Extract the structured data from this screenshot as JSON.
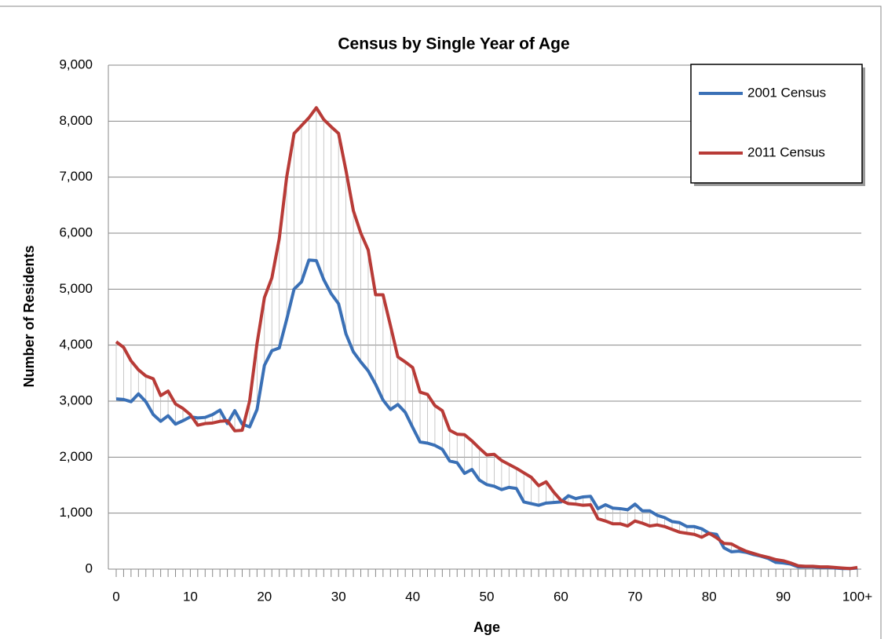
{
  "chart_data": {
    "type": "line",
    "title": "Census by Single Year of Age",
    "xlabel": "Age",
    "ylabel": "Number of Residents",
    "categories": [
      "0",
      null,
      null,
      null,
      null,
      null,
      null,
      null,
      null,
      null,
      "10",
      null,
      null,
      null,
      null,
      null,
      null,
      null,
      null,
      null,
      "20",
      null,
      null,
      null,
      null,
      null,
      null,
      null,
      null,
      null,
      "30",
      null,
      null,
      null,
      null,
      null,
      null,
      null,
      null,
      null,
      "40",
      null,
      null,
      null,
      null,
      null,
      null,
      null,
      null,
      null,
      "50",
      null,
      null,
      null,
      null,
      null,
      null,
      null,
      null,
      null,
      "60",
      null,
      null,
      null,
      null,
      null,
      null,
      null,
      null,
      null,
      "70",
      null,
      null,
      null,
      null,
      null,
      null,
      null,
      null,
      null,
      "80",
      null,
      null,
      null,
      null,
      null,
      null,
      null,
      null,
      null,
      "90",
      null,
      null,
      null,
      null,
      null,
      null,
      null,
      null,
      null,
      "100+"
    ],
    "series": [
      {
        "name": "2001 Census",
        "color": "#3a70b6",
        "values": [
          3040,
          3030,
          2990,
          3130,
          2990,
          2760,
          2640,
          2740,
          2590,
          2650,
          2720,
          2700,
          2710,
          2760,
          2840,
          2600,
          2830,
          2590,
          2540,
          2850,
          3640,
          3900,
          3950,
          4460,
          5000,
          5130,
          5520,
          5510,
          5170,
          4920,
          4740,
          4200,
          3880,
          3700,
          3540,
          3300,
          3020,
          2850,
          2940,
          2800,
          2530,
          2270,
          2250,
          2210,
          2140,
          1930,
          1900,
          1710,
          1780,
          1590,
          1510,
          1480,
          1420,
          1460,
          1440,
          1200,
          1170,
          1140,
          1180,
          1190,
          1200,
          1310,
          1260,
          1290,
          1300,
          1080,
          1150,
          1090,
          1080,
          1060,
          1160,
          1040,
          1040,
          960,
          920,
          850,
          830,
          760,
          760,
          720,
          640,
          620,
          380,
          310,
          320,
          300,
          260,
          230,
          190,
          120,
          110,
          90,
          40,
          40,
          40,
          30,
          30,
          20,
          10,
          10,
          20
        ]
      },
      {
        "name": "2011 Census",
        "color": "#b83b37",
        "values": [
          4060,
          3960,
          3720,
          3560,
          3450,
          3400,
          3100,
          3180,
          2950,
          2870,
          2760,
          2570,
          2600,
          2610,
          2640,
          2650,
          2470,
          2480,
          3000,
          4030,
          4850,
          5200,
          5900,
          7000,
          7780,
          7920,
          8060,
          8240,
          8030,
          7900,
          7780,
          7120,
          6400,
          6000,
          5700,
          4900,
          4900,
          4350,
          3790,
          3700,
          3600,
          3160,
          3120,
          2920,
          2830,
          2480,
          2410,
          2400,
          2290,
          2160,
          2040,
          2050,
          1940,
          1870,
          1800,
          1720,
          1640,
          1490,
          1560,
          1380,
          1230,
          1170,
          1160,
          1140,
          1150,
          900,
          860,
          810,
          810,
          770,
          860,
          820,
          770,
          790,
          760,
          710,
          660,
          640,
          620,
          570,
          640,
          560,
          460,
          450,
          380,
          320,
          280,
          240,
          210,
          170,
          150,
          110,
          60,
          50,
          50,
          40,
          40,
          30,
          20,
          10,
          30
        ]
      }
    ],
    "ylim": [
      0,
      9000
    ],
    "yticks": [
      0,
      {
        "value": 1000,
        "label": "1,000"
      },
      {
        "value": 2000,
        "label": "2,000"
      },
      {
        "value": 3000,
        "label": "3,000"
      },
      {
        "value": 4000,
        "label": "4,000"
      },
      {
        "value": 5000,
        "label": "5,000"
      },
      {
        "value": 6000,
        "label": "6,000"
      },
      {
        "value": 7000,
        "label": "7,000"
      },
      {
        "value": 8000,
        "label": "8,000"
      },
      {
        "value": 9000,
        "label": "9,000"
      }
    ],
    "grid": true,
    "high_low_lines": true,
    "legend": "top-right"
  }
}
